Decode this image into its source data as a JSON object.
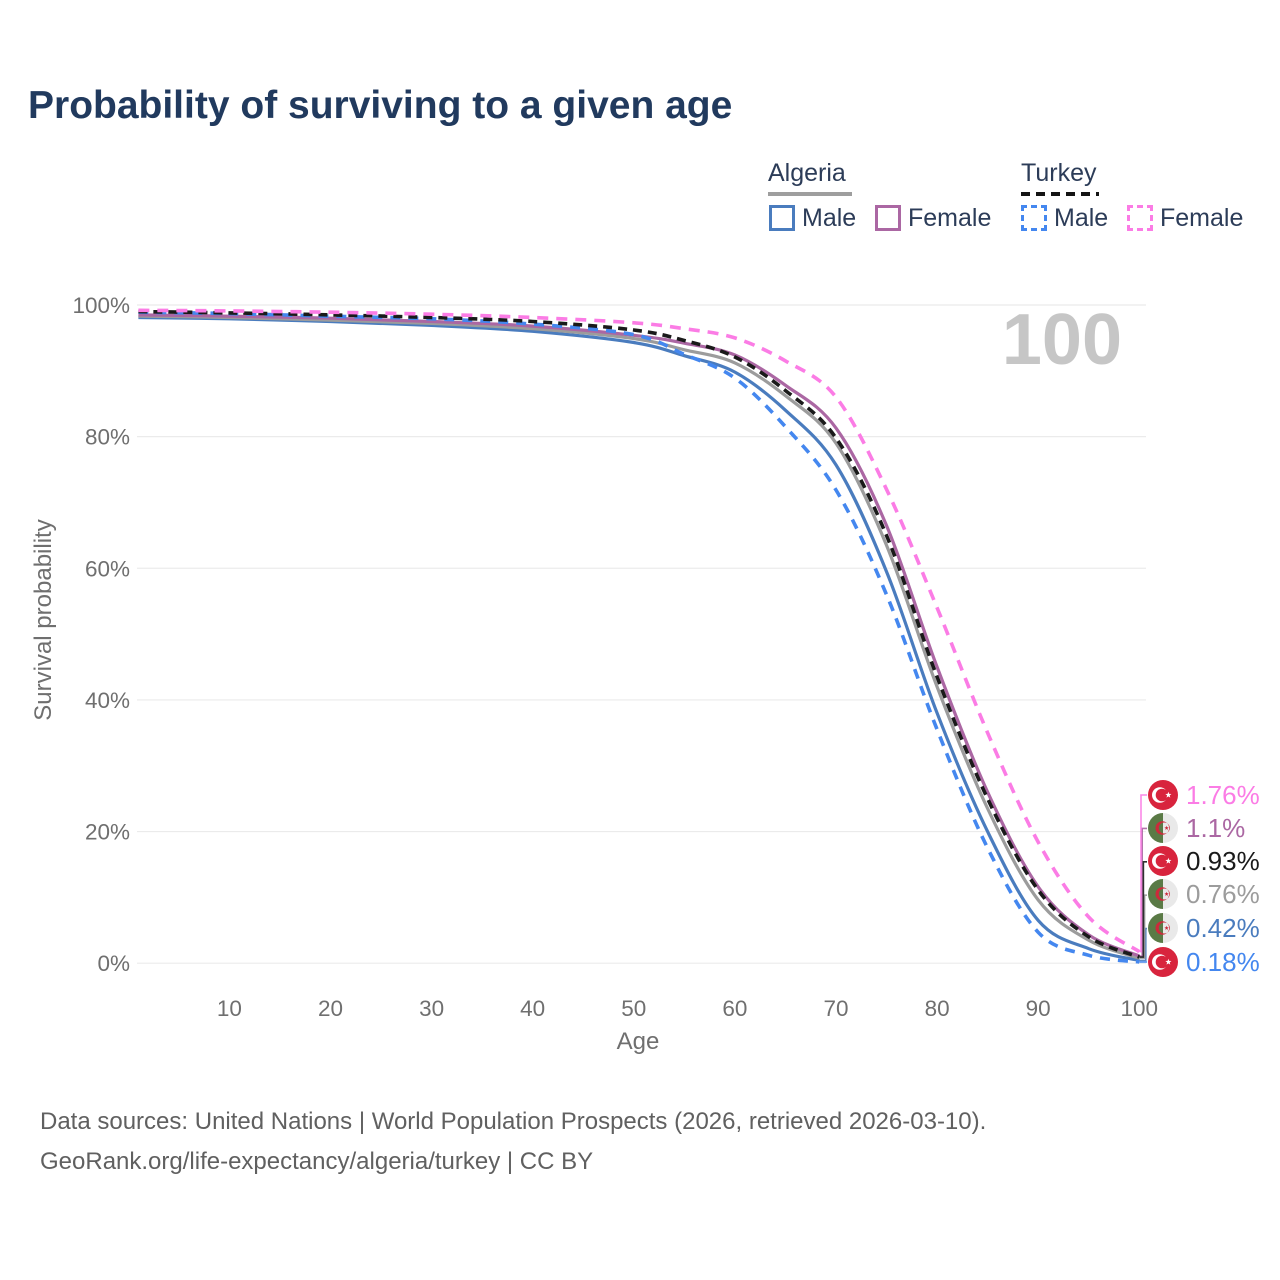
{
  "page": {
    "title": "Probability of surviving to a given age"
  },
  "watermark": "100",
  "colors": {
    "title": "#213a5e",
    "algeria_male": "#4a7cbe",
    "algeria_total": "#9c9c9c",
    "algeria_female": "#ab67a3",
    "turkey_male": "#4487ef",
    "turkey_total": "#1a1a1a",
    "turkey_female": "#fb7ce5",
    "grid": "#ebebeb",
    "tick_text": "#6f6f6f",
    "watermark_text": "#c6c6c6"
  },
  "legend": {
    "groups": [
      {
        "label": "Algeria",
        "line_style": "solid",
        "items": [
          {
            "label": "Male"
          },
          {
            "label": "Female"
          }
        ]
      },
      {
        "label": "Turkey",
        "line_style": "dashed",
        "items": [
          {
            "label": "Male"
          },
          {
            "label": "Female"
          }
        ]
      }
    ]
  },
  "chart_data": {
    "type": "line",
    "title": "Probability of surviving to a given age",
    "xlabel": "Age",
    "ylabel": "Survival probability",
    "xlim": [
      0,
      100
    ],
    "ylim": [
      0,
      100
    ],
    "grid": "horizontal",
    "x_ticks": [
      10,
      20,
      30,
      40,
      50,
      60,
      70,
      80,
      90,
      100
    ],
    "y_ticks": [
      "0%",
      "20%",
      "40%",
      "60%",
      "80%",
      "100%"
    ],
    "ages": [
      1,
      10,
      20,
      30,
      40,
      50,
      55,
      60,
      65,
      70,
      75,
      80,
      85,
      90,
      95,
      100
    ],
    "series": [
      {
        "id": "algeria_male",
        "name": "Algeria Male",
        "country": "Algeria",
        "group": "Male",
        "style": "solid",
        "label_row": 4,
        "end_value": "0.42%",
        "values": [
          98.1,
          97.9,
          97.5,
          96.9,
          96.0,
          94.3,
          92.3,
          89.8,
          84.0,
          75.7,
          59.5,
          38.0,
          20.0,
          6.5,
          2.2,
          0.42
        ]
      },
      {
        "id": "algeria_total",
        "name": "Algeria",
        "country": "Algeria",
        "group": "Both sexes",
        "style": "solid",
        "label_row": 3,
        "end_value": "0.76%",
        "values": [
          98.3,
          98.1,
          97.7,
          97.2,
          96.4,
          94.9,
          93.2,
          91.2,
          86.2,
          79.0,
          63.5,
          42.0,
          23.5,
          9.6,
          3.5,
          0.76
        ]
      },
      {
        "id": "algeria_female",
        "name": "Algeria Female",
        "country": "Algeria",
        "group": "Female",
        "style": "solid",
        "label_row": 1,
        "end_value": "1.1%",
        "values": [
          98.5,
          98.3,
          98.0,
          97.5,
          96.8,
          95.4,
          94.2,
          92.4,
          87.8,
          81.3,
          66.5,
          45.0,
          26.0,
          11.6,
          4.3,
          1.1
        ]
      },
      {
        "id": "turkey_male",
        "name": "Turkey Male",
        "country": "Turkey",
        "group": "Male",
        "style": "dashed",
        "label_row": 5,
        "end_value": "0.18%",
        "values": [
          98.9,
          98.7,
          98.3,
          97.9,
          97.1,
          95.5,
          92.5,
          88.9,
          81.5,
          71.9,
          56.0,
          35.5,
          17.5,
          4.7,
          1.2,
          0.18
        ]
      },
      {
        "id": "turkey_total",
        "name": "Turkey",
        "country": "Turkey",
        "group": "Both sexes",
        "style": "dashed",
        "label_row": 2,
        "end_value": "0.93%",
        "values": [
          99.0,
          98.8,
          98.5,
          98.1,
          97.5,
          96.2,
          94.6,
          92.1,
          87.0,
          79.8,
          65.0,
          43.5,
          25.0,
          11.1,
          4.0,
          0.93
        ]
      },
      {
        "id": "turkey_female",
        "name": "Turkey Female",
        "country": "Turkey",
        "group": "Female",
        "style": "dashed",
        "label_row": 0,
        "end_value": "1.76%",
        "values": [
          99.2,
          99.1,
          98.9,
          98.6,
          98.1,
          97.3,
          96.4,
          95.0,
          91.5,
          86.0,
          72.0,
          54.0,
          35.0,
          18.4,
          7.0,
          1.76
        ]
      }
    ],
    "end_labels": [
      {
        "value": "1.76%",
        "series": "turkey_female",
        "country": "Turkey"
      },
      {
        "value": "1.1%",
        "series": "algeria_female",
        "country": "Algeria"
      },
      {
        "value": "0.93%",
        "series": "turkey_total",
        "country": "Turkey"
      },
      {
        "value": "0.76%",
        "series": "algeria_total",
        "country": "Algeria"
      },
      {
        "value": "0.42%",
        "series": "algeria_male",
        "country": "Algeria"
      },
      {
        "value": "0.18%",
        "series": "turkey_male",
        "country": "Turkey"
      }
    ]
  },
  "footer": {
    "line1": "Data sources: United Nations | World Population Prospects (2026, retrieved 2026-03-10).",
    "line2": "GeoRank.org/life-expectancy/algeria/turkey | CC BY"
  }
}
